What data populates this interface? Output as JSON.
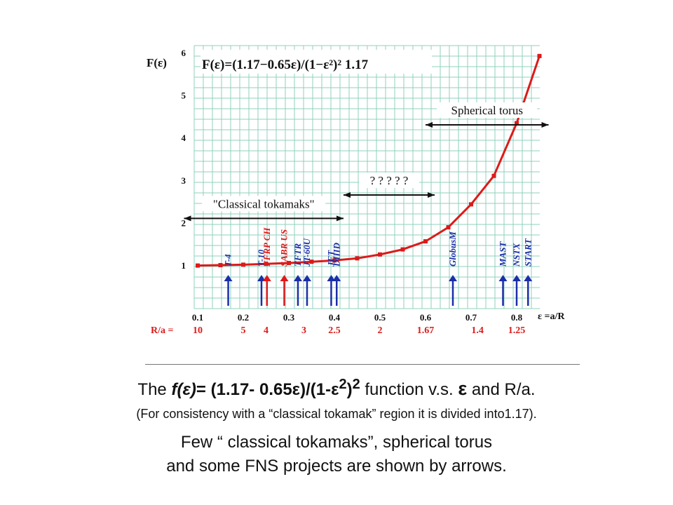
{
  "chart_data": {
    "type": "line",
    "title_formula": "F(ε)=(1.17−0.65ε)/(1−ε²)² 1.17",
    "ylabel": "F(ε)",
    "xlabel": "ε =a/R",
    "x_ticks": [
      "0.1",
      "0.2",
      "0.3",
      "0.4",
      "0.5",
      "0.6",
      "0.7",
      "0.8"
    ],
    "y_ticks": [
      "1",
      "2",
      "3",
      "4",
      "5",
      "6"
    ],
    "xlim": [
      0.1,
      0.88
    ],
    "ylim": [
      0.8,
      6.0
    ],
    "ratio_label": "R/a =",
    "ratio_ticks": [
      {
        "x": 0.1,
        "label": "10"
      },
      {
        "x": 0.2,
        "label": "5"
      },
      {
        "x": 0.25,
        "label": "4"
      },
      {
        "x": 0.333,
        "label": "3"
      },
      {
        "x": 0.4,
        "label": "2.5"
      },
      {
        "x": 0.5,
        "label": "2"
      },
      {
        "x": 0.6,
        "label": "1.67"
      },
      {
        "x": 0.714,
        "label": "1.4"
      },
      {
        "x": 0.8,
        "label": "1.25"
      }
    ],
    "series": [
      {
        "values": [
          {
            "x": 0.1,
            "y": 0.99
          },
          {
            "x": 0.15,
            "y": 1.0
          },
          {
            "x": 0.2,
            "y": 1.01
          },
          {
            "x": 0.25,
            "y": 1.03
          },
          {
            "x": 0.3,
            "y": 1.05
          },
          {
            "x": 0.35,
            "y": 1.08
          },
          {
            "x": 0.4,
            "y": 1.11
          },
          {
            "x": 0.45,
            "y": 1.16
          },
          {
            "x": 0.5,
            "y": 1.25
          },
          {
            "x": 0.55,
            "y": 1.37
          },
          {
            "x": 0.6,
            "y": 1.56
          },
          {
            "x": 0.65,
            "y": 1.89
          },
          {
            "x": 0.7,
            "y": 2.43
          },
          {
            "x": 0.75,
            "y": 3.1
          },
          {
            "x": 0.8,
            "y": 4.34
          },
          {
            "x": 0.85,
            "y": 5.92
          }
        ]
      }
    ],
    "arrows": [
      {
        "label": "T-4",
        "x": 0.167,
        "color": "#1a2fa8"
      },
      {
        "label": "T-10",
        "x": 0.24,
        "color": "#1a2fa8"
      },
      {
        "label": "FFRP CH",
        "x": 0.252,
        "color": "#dd1a1a"
      },
      {
        "label": "SABR US",
        "x": 0.29,
        "color": "#dd1a1a"
      },
      {
        "label": "TFTR",
        "x": 0.32,
        "color": "#1a2fa8"
      },
      {
        "label": "JT-60U",
        "x": 0.34,
        "color": "#1a2fa8"
      },
      {
        "label": "JET",
        "x": 0.393,
        "color": "#1a2fa8"
      },
      {
        "label": "DIIID",
        "x": 0.405,
        "color": "#1a2fa8"
      },
      {
        "label": "GlobusM",
        "x": 0.66,
        "color": "#1a2fa8"
      },
      {
        "label": "MAST",
        "x": 0.77,
        "color": "#1a2fa8"
      },
      {
        "label": "NSTX",
        "x": 0.8,
        "color": "#1a2fa8"
      },
      {
        "label": "START",
        "x": 0.825,
        "color": "#1a2fa8"
      }
    ],
    "regions": [
      {
        "label": "\"Classical tokamaks\"",
        "x0": 0.07,
        "x1": 0.42,
        "y": 2.1
      },
      {
        "label": "? ? ? ? ?",
        "x0": 0.42,
        "x1": 0.62,
        "y": 2.65
      },
      {
        "label": "Spherical  torus",
        "x0": 0.6,
        "x1": 0.87,
        "y": 4.3
      }
    ],
    "colors": {
      "grid": "#8fd1bd",
      "curve": "#dd1a1a",
      "label_red": "#dd1a1a",
      "arrow_blue": "#1a2fa8"
    }
  },
  "caption": {
    "line1_pre": "The ",
    "line1_f": "f(ε)",
    "line1_formula": "= (1.17- 0.65ε)/(1-ε",
    "line1_sup1": "2",
    "line1_close": ")",
    "line1_sup2": "2",
    "line1_post": "  function v.s. ",
    "line1_eps": "ε",
    "line1_end": " and R/a.",
    "line2": "(For consistency with a “classical tokamak” region it is divided into1.17).",
    "line3": "Few “ classical tokamaks”, spherical torus",
    "line4": "and some FNS projects are shown by arrows."
  }
}
